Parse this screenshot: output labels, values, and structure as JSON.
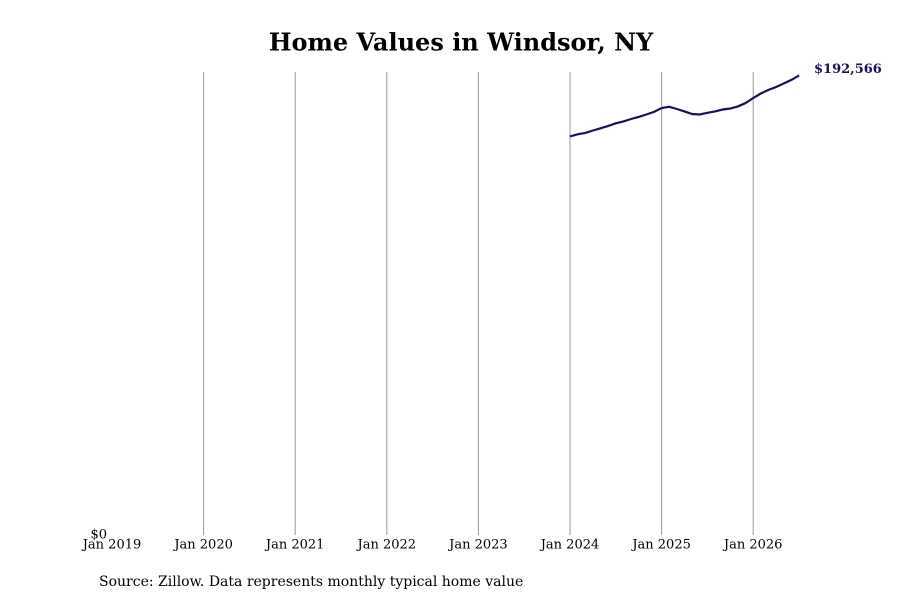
{
  "chart_data": {
    "type": "line",
    "title": "Home Values in Windsor, NY",
    "source": "Source: Zillow. Data represents monthly typical home value",
    "x": [
      "2024-01",
      "2024-02",
      "2024-03",
      "2024-04",
      "2024-05",
      "2024-06",
      "2024-07",
      "2024-08",
      "2024-09",
      "2024-10",
      "2024-11",
      "2024-12",
      "2025-01",
      "2025-02",
      "2025-03",
      "2025-04",
      "2025-05",
      "2025-06",
      "2025-07",
      "2025-08",
      "2025-09",
      "2025-10",
      "2025-11",
      "2025-12",
      "2026-01",
      "2026-02",
      "2026-03",
      "2026-04",
      "2026-05",
      "2026-06",
      "2026-07"
    ],
    "series": [
      {
        "name": "Windsor, NY",
        "color": "#14145e",
        "values": [
          167000,
          167900,
          168500,
          169500,
          170400,
          171400,
          172500,
          173300,
          174300,
          175200,
          176200,
          177300,
          178900,
          179400,
          178500,
          177500,
          176400,
          176200,
          176900,
          177500,
          178300,
          178700,
          179600,
          181000,
          183100,
          185000,
          186500,
          187700,
          189200,
          190700,
          192566
        ],
        "value_labels": [
          null,
          null,
          null,
          null,
          null,
          null,
          null,
          null,
          null,
          null,
          null,
          null,
          null,
          null,
          null,
          null,
          null,
          null,
          null,
          null,
          null,
          null,
          null,
          null,
          null,
          null,
          null,
          null,
          null,
          null,
          "$192,566"
        ]
      }
    ],
    "xlim": [
      "2019-01",
      "2026-07"
    ],
    "xticks": [
      {
        "value": "2019-01",
        "label": "Jan 2019"
      },
      {
        "value": "2020-01",
        "label": "Jan 2020"
      },
      {
        "value": "2021-01",
        "label": "Jan 2021"
      },
      {
        "value": "2022-01",
        "label": "Jan 2022"
      },
      {
        "value": "2023-01",
        "label": "Jan 2023"
      },
      {
        "value": "2024-01",
        "label": "Jan 2024"
      },
      {
        "value": "2025-01",
        "label": "Jan 2025"
      },
      {
        "value": "2026-01",
        "label": "Jan 2026"
      }
    ],
    "ylim": [
      0,
      194000
    ],
    "yticks": [
      {
        "value": 0,
        "label": "$0"
      }
    ],
    "grid": "x"
  }
}
